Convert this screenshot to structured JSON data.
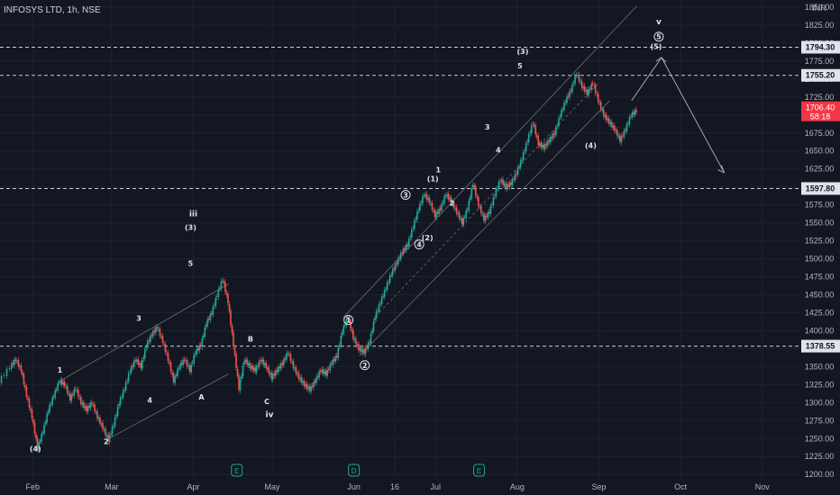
{
  "header": {
    "title": "INFOSYS LTD, 1h, NSE"
  },
  "chart_data": {
    "type": "candlestick",
    "currency": "INR",
    "ylim": [
      1194,
      1860
    ],
    "y_ticks": [
      1200,
      1225,
      1250,
      1275,
      1300,
      1325,
      1350,
      1375,
      1400,
      1425,
      1450,
      1475,
      1500,
      1525,
      1550,
      1575,
      1600,
      1625,
      1650,
      1675,
      1700,
      1725,
      1750,
      1775,
      1800,
      1825,
      1850
    ],
    "y_tick_labels": [
      "1200.00",
      "1225.00",
      "1250.00",
      "1275.00",
      "1300.00",
      "1325.00",
      "1350.00",
      "1375.00",
      "1400.00",
      "1425.00",
      "1450.00",
      "1475.00",
      "1500.00",
      "1525.00",
      "1550.00",
      "1575.00",
      "1600.00",
      "1625.00",
      "1650.00",
      "1675.00",
      "1700.00",
      "1725.00",
      "1750.00",
      "1775.00",
      "1800.00",
      "1825.00",
      "1850.00"
    ],
    "x_ticks": [
      {
        "label": "Feb",
        "t": 8
      },
      {
        "label": "Mar",
        "t": 37
      },
      {
        "label": "Apr",
        "t": 67
      },
      {
        "label": "May",
        "t": 96
      },
      {
        "label": "Jun",
        "t": 126
      },
      {
        "label": "16",
        "t": 141
      },
      {
        "label": "Jul",
        "t": 156
      },
      {
        "label": "Aug",
        "t": 186
      },
      {
        "label": "Sep",
        "t": 216
      },
      {
        "label": "Oct",
        "t": 246
      },
      {
        "label": "Nov",
        "t": 276
      }
    ],
    "xlim": [
      -4,
      290
    ],
    "price_path": [
      [
        -4,
        1330
      ],
      [
        0,
        1350
      ],
      [
        2,
        1360
      ],
      [
        4,
        1345
      ],
      [
        6,
        1310
      ],
      [
        8,
        1280
      ],
      [
        10,
        1237
      ],
      [
        12,
        1260
      ],
      [
        14,
        1290
      ],
      [
        16,
        1310
      ],
      [
        18,
        1330
      ],
      [
        20,
        1325
      ],
      [
        22,
        1305
      ],
      [
        24,
        1320
      ],
      [
        26,
        1300
      ],
      [
        28,
        1290
      ],
      [
        30,
        1300
      ],
      [
        32,
        1280
      ],
      [
        34,
        1265
      ],
      [
        36,
        1248
      ],
      [
        38,
        1270
      ],
      [
        40,
        1300
      ],
      [
        42,
        1320
      ],
      [
        44,
        1345
      ],
      [
        46,
        1360
      ],
      [
        48,
        1350
      ],
      [
        50,
        1380
      ],
      [
        52,
        1395
      ],
      [
        54,
        1405
      ],
      [
        56,
        1385
      ],
      [
        58,
        1360
      ],
      [
        60,
        1330
      ],
      [
        62,
        1350
      ],
      [
        64,
        1360
      ],
      [
        66,
        1345
      ],
      [
        68,
        1370
      ],
      [
        70,
        1380
      ],
      [
        72,
        1410
      ],
      [
        74,
        1425
      ],
      [
        76,
        1450
      ],
      [
        78,
        1472
      ],
      [
        80,
        1440
      ],
      [
        82,
        1380
      ],
      [
        84,
        1320
      ],
      [
        86,
        1360
      ],
      [
        88,
        1350
      ],
      [
        90,
        1345
      ],
      [
        92,
        1360
      ],
      [
        94,
        1350
      ],
      [
        96,
        1335
      ],
      [
        98,
        1345
      ],
      [
        100,
        1355
      ],
      [
        102,
        1370
      ],
      [
        104,
        1350
      ],
      [
        106,
        1335
      ],
      [
        108,
        1325
      ],
      [
        110,
        1318
      ],
      [
        112,
        1330
      ],
      [
        114,
        1345
      ],
      [
        116,
        1340
      ],
      [
        118,
        1355
      ],
      [
        120,
        1365
      ],
      [
        122,
        1400
      ],
      [
        124,
        1420
      ],
      [
        126,
        1390
      ],
      [
        128,
        1375
      ],
      [
        130,
        1370
      ],
      [
        132,
        1385
      ],
      [
        134,
        1420
      ],
      [
        136,
        1440
      ],
      [
        138,
        1460
      ],
      [
        140,
        1480
      ],
      [
        142,
        1495
      ],
      [
        144,
        1510
      ],
      [
        146,
        1520
      ],
      [
        148,
        1545
      ],
      [
        150,
        1570
      ],
      [
        152,
        1590
      ],
      [
        154,
        1580
      ],
      [
        156,
        1560
      ],
      [
        158,
        1570
      ],
      [
        160,
        1590
      ],
      [
        162,
        1580
      ],
      [
        164,
        1565
      ],
      [
        166,
        1550
      ],
      [
        168,
        1570
      ],
      [
        170,
        1605
      ],
      [
        172,
        1575
      ],
      [
        174,
        1555
      ],
      [
        176,
        1565
      ],
      [
        178,
        1590
      ],
      [
        180,
        1610
      ],
      [
        182,
        1600
      ],
      [
        184,
        1605
      ],
      [
        186,
        1620
      ],
      [
        188,
        1640
      ],
      [
        190,
        1665
      ],
      [
        192,
        1690
      ],
      [
        194,
        1660
      ],
      [
        196,
        1655
      ],
      [
        198,
        1665
      ],
      [
        200,
        1675
      ],
      [
        202,
        1700
      ],
      [
        204,
        1720
      ],
      [
        206,
        1735
      ],
      [
        208,
        1758
      ],
      [
        210,
        1740
      ],
      [
        212,
        1730
      ],
      [
        214,
        1745
      ],
      [
        216,
        1720
      ],
      [
        218,
        1700
      ],
      [
        220,
        1690
      ],
      [
        222,
        1680
      ],
      [
        224,
        1665
      ],
      [
        226,
        1680
      ],
      [
        228,
        1700
      ],
      [
        230,
        1706
      ]
    ],
    "horizontal_lines": [
      {
        "price": 1794.3,
        "label": "1794.30"
      },
      {
        "price": 1755.2,
        "label": "1755.20"
      },
      {
        "price": 1597.8,
        "label": "1597.80"
      },
      {
        "price": 1378.55,
        "label": "1378.55"
      }
    ],
    "current_price": {
      "label": "1706.40",
      "countdown": "58:18",
      "price": 1706.4
    },
    "wave_labels": [
      {
        "t": 9,
        "p": 1232,
        "text": "(4)"
      },
      {
        "t": 18,
        "p": 1342,
        "text": "1"
      },
      {
        "t": 35,
        "p": 1242,
        "text": "2"
      },
      {
        "t": 47,
        "p": 1414,
        "text": "3"
      },
      {
        "t": 51,
        "p": 1300,
        "text": "4"
      },
      {
        "t": 66,
        "p": 1540,
        "text": "(3)"
      },
      {
        "t": 66,
        "p": 1490,
        "text": "5"
      },
      {
        "t": 70,
        "p": 1304,
        "text": "A"
      },
      {
        "t": 88,
        "p": 1385,
        "text": "B"
      },
      {
        "t": 94,
        "p": 1298,
        "text": "C"
      },
      {
        "t": 155,
        "p": 1608,
        "text": "(1)"
      },
      {
        "t": 153,
        "p": 1526,
        "text": "(2)"
      },
      {
        "t": 157,
        "p": 1620,
        "text": "1"
      },
      {
        "t": 162,
        "p": 1574,
        "text": "2"
      },
      {
        "t": 175,
        "p": 1680,
        "text": "3"
      },
      {
        "t": 179,
        "p": 1648,
        "text": "4"
      },
      {
        "t": 188,
        "p": 1785,
        "text": "(3)"
      },
      {
        "t": 187,
        "p": 1765,
        "text": "5"
      },
      {
        "t": 213,
        "p": 1654,
        "text": "(4)"
      },
      {
        "t": 237,
        "p": 1792,
        "text": "(5)"
      }
    ],
    "wave_labels_big": [
      {
        "t": 67,
        "p": 1559,
        "text": "iii"
      },
      {
        "t": 95,
        "p": 1280,
        "text": "iv"
      },
      {
        "t": 238,
        "p": 1826,
        "text": "v"
      }
    ],
    "circle_labels": [
      {
        "t": 124,
        "p": 1415,
        "text": "1"
      },
      {
        "t": 130,
        "p": 1352,
        "text": "2"
      },
      {
        "t": 145,
        "p": 1589,
        "text": "3"
      },
      {
        "t": 150,
        "p": 1520,
        "text": "4"
      },
      {
        "t": 238,
        "p": 1809,
        "text": "5"
      }
    ],
    "event_markers": [
      {
        "t": 83,
        "text": "E"
      },
      {
        "t": 126,
        "text": "D"
      },
      {
        "t": 172,
        "text": "E"
      }
    ],
    "projection": [
      [
        228,
        1720
      ],
      [
        239,
        1780
      ],
      [
        262,
        1620
      ]
    ]
  }
}
